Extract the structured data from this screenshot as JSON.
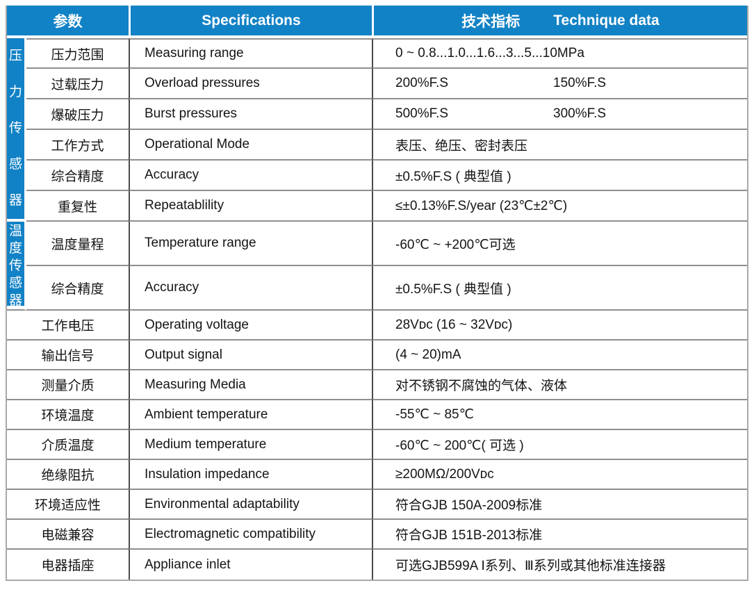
{
  "colors": {
    "header_blue": "#1282c6",
    "row_line_gray": "#8f8f8f",
    "column_divider_dark": "#4a4a4a",
    "header_text": "#ffffff",
    "body_text": "#141414"
  },
  "table": {
    "header": {
      "col_param": "参数",
      "col_spec": "Specifications",
      "col_tech_zh": "技术指标",
      "col_tech_en": "Technique data"
    },
    "groups": {
      "pressure": "压力传感器",
      "temperature": "温度传感器"
    },
    "rows": [
      {
        "label": "压力范围",
        "spec": "Measuring range",
        "value": "0 ~ 0.8...1.0...1.6...3...5...10MPa"
      },
      {
        "label": "过载压力",
        "spec": "Overload pressures",
        "value": "200%F.S",
        "value2": "150%F.S"
      },
      {
        "label": "爆破压力",
        "spec": "Burst pressures",
        "value": "500%F.S",
        "value2": "300%F.S"
      },
      {
        "label": "工作方式",
        "spec": "Operational Mode",
        "value": "表压、绝压、密封表压"
      },
      {
        "label": "综合精度",
        "spec": "Accuracy",
        "value": "±0.5%F.S ( 典型值 )"
      },
      {
        "label": "重复性",
        "spec": "Repeatablility",
        "value": "≤±0.13%F.S/year  (23℃±2℃)"
      },
      {
        "label": "温度量程",
        "spec": "Temperature range",
        "value": "-60℃ ~ +200℃可选"
      },
      {
        "label": "综合精度",
        "spec": "Accuracy",
        "value": "±0.5%F.S ( 典型值 )"
      },
      {
        "label": "工作电压",
        "spec": "Operating voltage",
        "value": "28Vᴅᴄ (16 ~ 32Vᴅᴄ)"
      },
      {
        "label": "输出信号",
        "spec": "Output signal",
        "value": "(4 ~ 20)mA"
      },
      {
        "label": "测量介质",
        "spec": "Measuring Media",
        "value": "对不锈钢不腐蚀的气体、液体"
      },
      {
        "label": "环境温度",
        "spec": "Ambient temperature",
        "value": "-55℃ ~ 85℃"
      },
      {
        "label": "介质温度",
        "spec": "Medium temperature",
        "value": "-60℃ ~ 200℃( 可选 )"
      },
      {
        "label": "绝缘阻抗",
        "spec": "Insulation impedance",
        "value": "≥200MΩ/200Vᴅᴄ"
      },
      {
        "label": "环境适应性",
        "spec": "Environmental  adaptability",
        "value": "符合GJB 150A-2009标准"
      },
      {
        "label": "电磁兼容",
        "spec": "Electromagnetic compatibility",
        "value": "符合GJB 151B-2013标准"
      },
      {
        "label": "电器插座",
        "spec": "Appliance inlet",
        "value": "可选GJB599A I系列、Ⅲ系列或其他标准连接器"
      }
    ]
  }
}
